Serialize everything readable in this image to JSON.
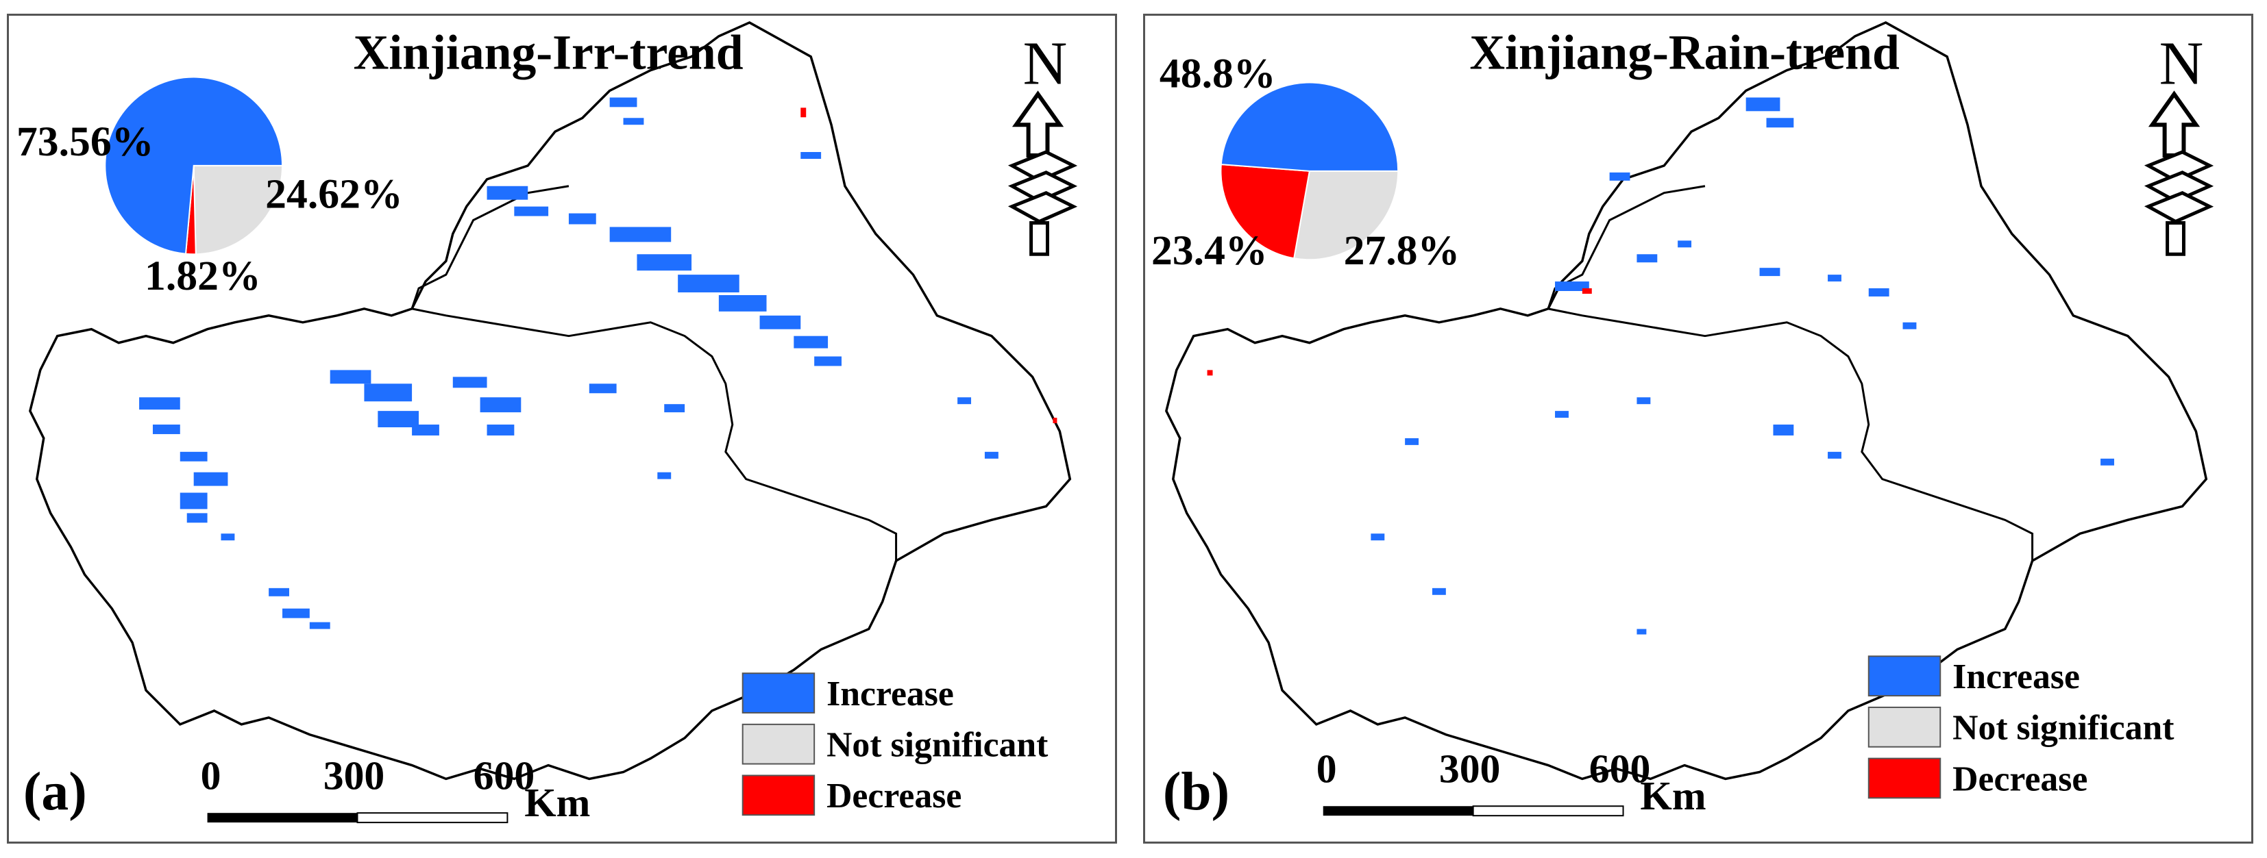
{
  "colors": {
    "increase": "#1f6fff",
    "not_significant": "#e0e0e0",
    "decrease": "#ff0000"
  },
  "legend": {
    "increase": "Increase",
    "not_significant": "Not significant",
    "decrease": "Decrease"
  },
  "north_label": "N",
  "scale": {
    "t0": "0",
    "t1": "300",
    "t2": "600",
    "unit": "Km"
  },
  "panels": [
    {
      "label": "(a)",
      "title": "Xinjiang-Irr-trend",
      "pie": [
        {
          "category": "Increase",
          "value": 73.56,
          "label": "73.56%",
          "color": "#1f6fff"
        },
        {
          "category": "Not significant",
          "value": 24.62,
          "label": "24.62%",
          "color": "#e0e0e0"
        },
        {
          "category": "Decrease",
          "value": 1.82,
          "label": "1.82%",
          "color": "#ff0000"
        }
      ]
    },
    {
      "label": "(b)",
      "title": "Xinjiang-Rain-trend",
      "pie": [
        {
          "category": "Increase",
          "value": 48.8,
          "label": "48.8%",
          "color": "#1f6fff"
        },
        {
          "category": "Not significant",
          "value": 27.8,
          "label": "27.8%",
          "color": "#e0e0e0"
        },
        {
          "category": "Decrease",
          "value": 23.4,
          "label": "23.4%",
          "color": "#ff0000"
        }
      ]
    }
  ]
}
